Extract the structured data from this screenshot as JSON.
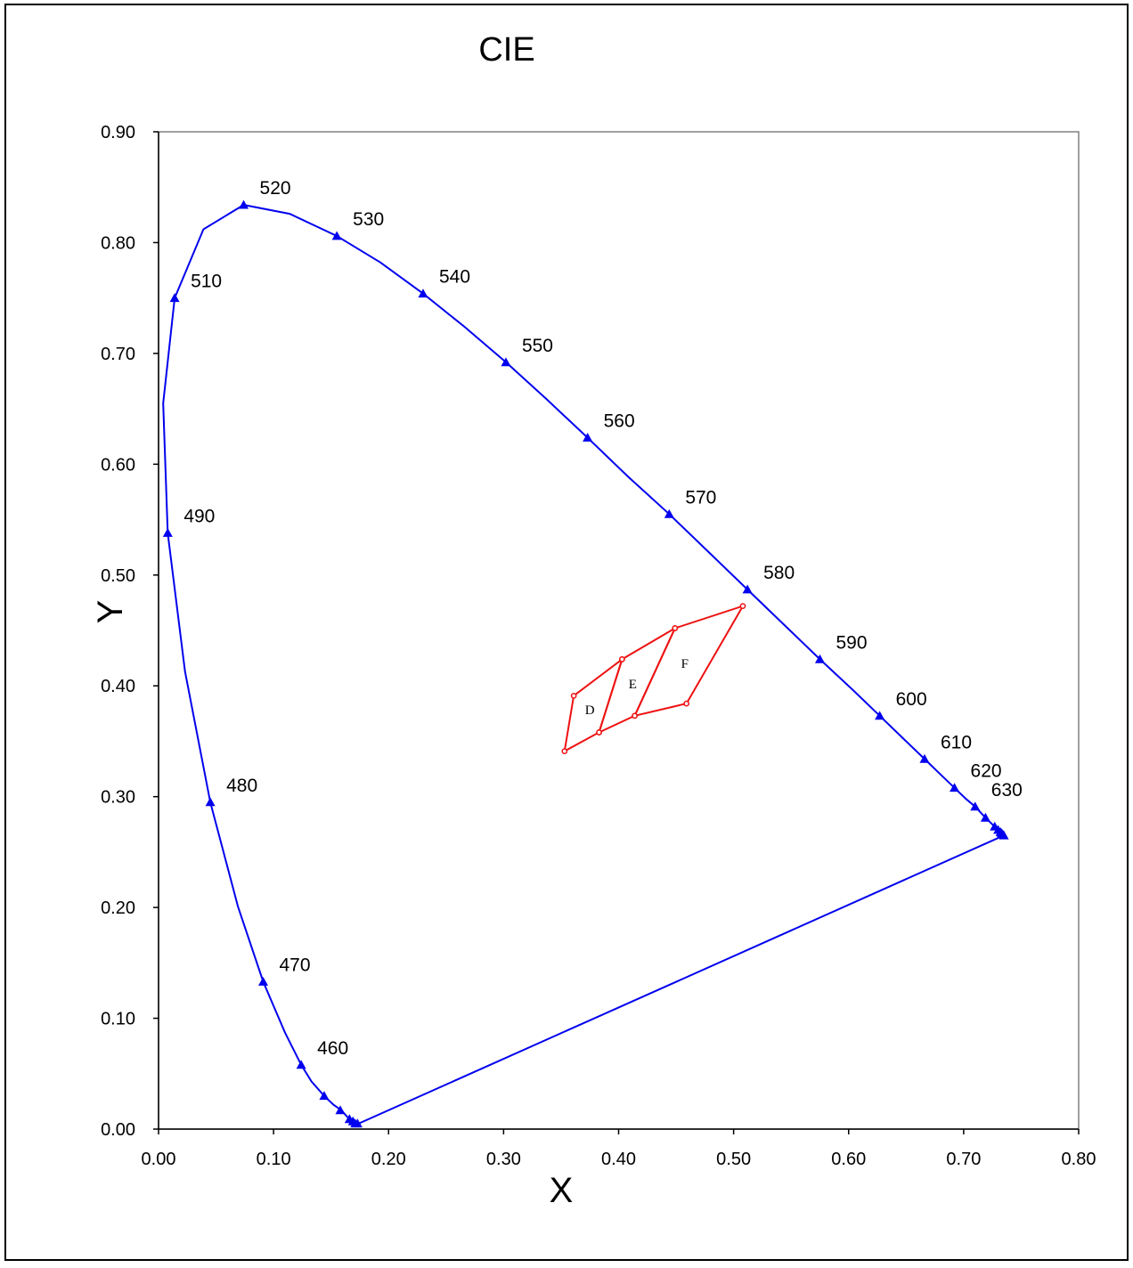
{
  "chart_data": {
    "type": "scatter",
    "title": "CIE",
    "xlabel": "X",
    "ylabel": "Y",
    "xlim": [
      0,
      0.8
    ],
    "ylim": [
      0,
      0.9
    ],
    "xticks": [
      "0.00",
      "0.10",
      "0.20",
      "0.30",
      "0.40",
      "0.50",
      "0.60",
      "0.70",
      "0.80"
    ],
    "yticks": [
      "0.00",
      "0.10",
      "0.20",
      "0.30",
      "0.40",
      "0.50",
      "0.60",
      "0.70",
      "0.80",
      "0.90"
    ],
    "grid": false,
    "colors": {
      "locus": "#0000ee",
      "regions": "#ee1111"
    },
    "locus": {
      "marker": "triangle",
      "line_points": [
        [
          0.174,
          0.005
        ],
        [
          0.172,
          0.005
        ],
        [
          0.17,
          0.006
        ],
        [
          0.167,
          0.009
        ],
        [
          0.164,
          0.011
        ],
        [
          0.159,
          0.017
        ],
        [
          0.152,
          0.022
        ],
        [
          0.144,
          0.03
        ],
        [
          0.133,
          0.043
        ],
        [
          0.124,
          0.058
        ],
        [
          0.11,
          0.087
        ],
        [
          0.091,
          0.133
        ],
        [
          0.069,
          0.201
        ],
        [
          0.045,
          0.295
        ],
        [
          0.023,
          0.413
        ],
        [
          0.008,
          0.538
        ],
        [
          0.004,
          0.655
        ],
        [
          0.014,
          0.75
        ],
        [
          0.039,
          0.812
        ],
        [
          0.074,
          0.834
        ],
        [
          0.114,
          0.826
        ],
        [
          0.155,
          0.806
        ],
        [
          0.193,
          0.782
        ],
        [
          0.23,
          0.754
        ],
        [
          0.266,
          0.724
        ],
        [
          0.302,
          0.692
        ],
        [
          0.337,
          0.659
        ],
        [
          0.373,
          0.624
        ],
        [
          0.408,
          0.589
        ],
        [
          0.444,
          0.555
        ],
        [
          0.479,
          0.52
        ],
        [
          0.512,
          0.487
        ],
        [
          0.545,
          0.454
        ],
        [
          0.575,
          0.424
        ],
        [
          0.603,
          0.397
        ],
        [
          0.627,
          0.373
        ],
        [
          0.648,
          0.352
        ],
        [
          0.666,
          0.334
        ],
        [
          0.68,
          0.32
        ],
        [
          0.692,
          0.308
        ],
        [
          0.702,
          0.298
        ],
        [
          0.71,
          0.291
        ],
        [
          0.719,
          0.281
        ],
        [
          0.727,
          0.273
        ],
        [
          0.73,
          0.27
        ],
        [
          0.732,
          0.268
        ],
        [
          0.733,
          0.267
        ],
        [
          0.734,
          0.266
        ],
        [
          0.735,
          0.265
        ]
      ],
      "markers": [
        [
          0.173,
          0.005
        ],
        [
          0.171,
          0.005
        ],
        [
          0.169,
          0.007
        ],
        [
          0.166,
          0.009
        ],
        [
          0.158,
          0.017
        ],
        [
          0.144,
          0.03
        ],
        [
          0.124,
          0.058
        ],
        [
          0.091,
          0.133
        ],
        [
          0.045,
          0.295
        ],
        [
          0.008,
          0.538
        ],
        [
          0.014,
          0.75
        ],
        [
          0.074,
          0.834
        ],
        [
          0.155,
          0.806
        ],
        [
          0.23,
          0.754
        ],
        [
          0.302,
          0.692
        ],
        [
          0.373,
          0.624
        ],
        [
          0.444,
          0.555
        ],
        [
          0.512,
          0.487
        ],
        [
          0.575,
          0.424
        ],
        [
          0.627,
          0.373
        ],
        [
          0.666,
          0.334
        ],
        [
          0.692,
          0.308
        ],
        [
          0.71,
          0.291
        ],
        [
          0.719,
          0.281
        ],
        [
          0.727,
          0.273
        ],
        [
          0.73,
          0.27
        ],
        [
          0.732,
          0.268
        ],
        [
          0.733,
          0.267
        ],
        [
          0.734,
          0.266
        ],
        [
          0.735,
          0.265
        ]
      ],
      "wavelength_labels": [
        {
          "text": "460",
          "x": 0.124,
          "y": 0.058
        },
        {
          "text": "470",
          "x": 0.091,
          "y": 0.133
        },
        {
          "text": "480",
          "x": 0.045,
          "y": 0.295
        },
        {
          "text": "490",
          "x": 0.008,
          "y": 0.538
        },
        {
          "text": "510",
          "x": 0.014,
          "y": 0.75
        },
        {
          "text": "520",
          "x": 0.074,
          "y": 0.834
        },
        {
          "text": "530",
          "x": 0.155,
          "y": 0.806
        },
        {
          "text": "540",
          "x": 0.23,
          "y": 0.754
        },
        {
          "text": "550",
          "x": 0.302,
          "y": 0.692
        },
        {
          "text": "560",
          "x": 0.373,
          "y": 0.624
        },
        {
          "text": "570",
          "x": 0.444,
          "y": 0.555
        },
        {
          "text": "580",
          "x": 0.512,
          "y": 0.487
        },
        {
          "text": "590",
          "x": 0.575,
          "y": 0.424
        },
        {
          "text": "600",
          "x": 0.627,
          "y": 0.373
        },
        {
          "text": "610",
          "x": 0.666,
          "y": 0.334
        },
        {
          "text": "620",
          "x": 0.692,
          "y": 0.308
        },
        {
          "text": "630",
          "x": 0.71,
          "y": 0.291
        }
      ]
    },
    "regions": [
      {
        "label": "D",
        "points": [
          [
            0.361,
            0.391
          ],
          [
            0.403,
            0.424
          ],
          [
            0.383,
            0.358
          ],
          [
            0.353,
            0.341
          ]
        ]
      },
      {
        "label": "E",
        "points": [
          [
            0.403,
            0.424
          ],
          [
            0.449,
            0.452
          ],
          [
            0.414,
            0.373
          ],
          [
            0.383,
            0.358
          ]
        ]
      },
      {
        "label": "F",
        "points": [
          [
            0.449,
            0.452
          ],
          [
            0.508,
            0.472
          ],
          [
            0.459,
            0.384
          ],
          [
            0.414,
            0.373
          ]
        ]
      }
    ]
  }
}
